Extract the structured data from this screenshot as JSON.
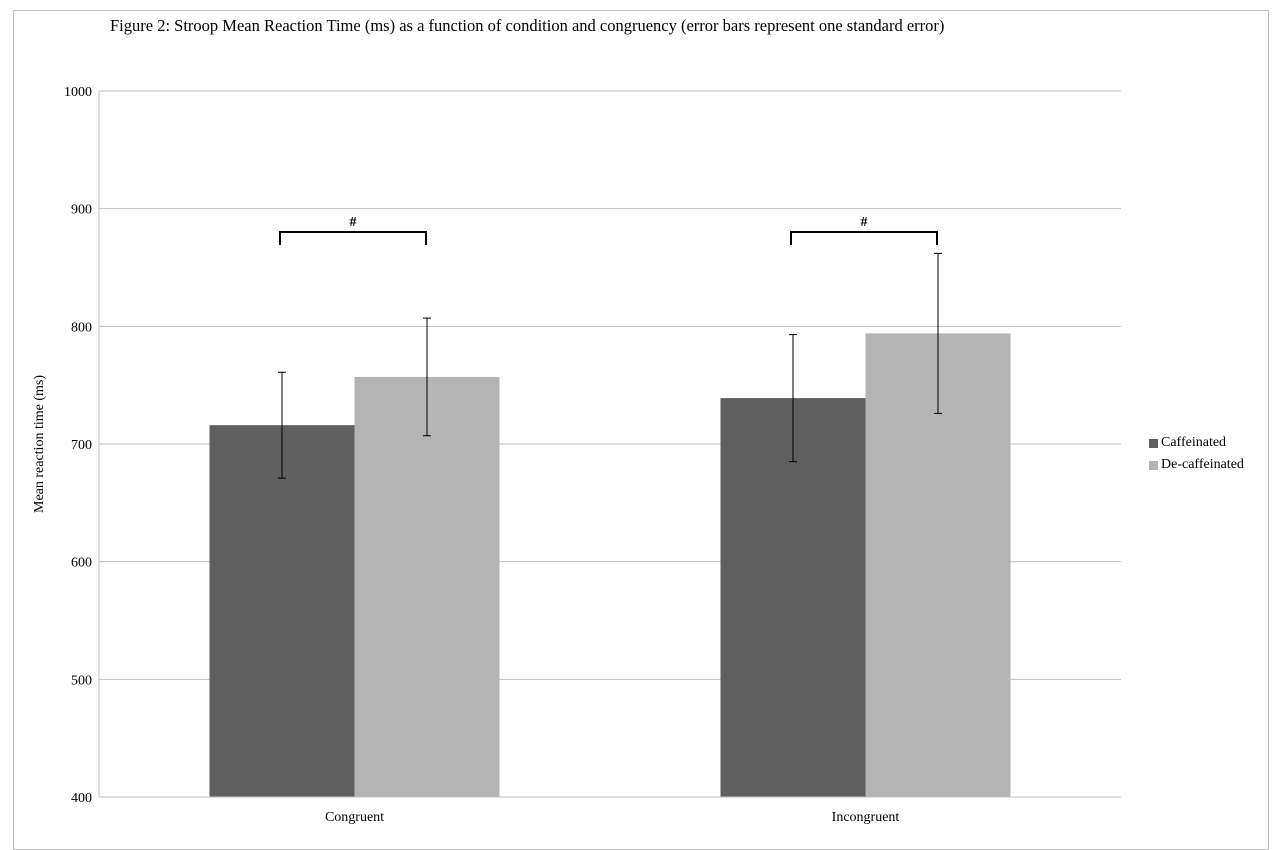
{
  "chart_data": {
    "type": "bar",
    "title": "Figure 2: Stroop Mean Reaction Time (ms) as a function of  condition and congruency (error bars represent one standard error)",
    "xlabel": "",
    "ylabel": "Mean reaction time (ms)",
    "ylim": [
      400,
      1000
    ],
    "yticks": [
      400,
      500,
      600,
      700,
      800,
      900,
      1000
    ],
    "grid": true,
    "legend_position": "right",
    "categories": [
      "Congruent",
      "Incongruent"
    ],
    "series": [
      {
        "name": "Caffeinated",
        "color": "#5f5f5f",
        "values": [
          716,
          739
        ],
        "error": [
          45,
          54
        ]
      },
      {
        "name": "De-caffeinated",
        "color": "#b4b4b4",
        "values": [
          757,
          794
        ],
        "error": [
          50,
          68
        ]
      }
    ],
    "annotations": [
      {
        "label": "#",
        "category": "Congruent"
      },
      {
        "label": "#",
        "category": "Incongruent"
      }
    ]
  }
}
